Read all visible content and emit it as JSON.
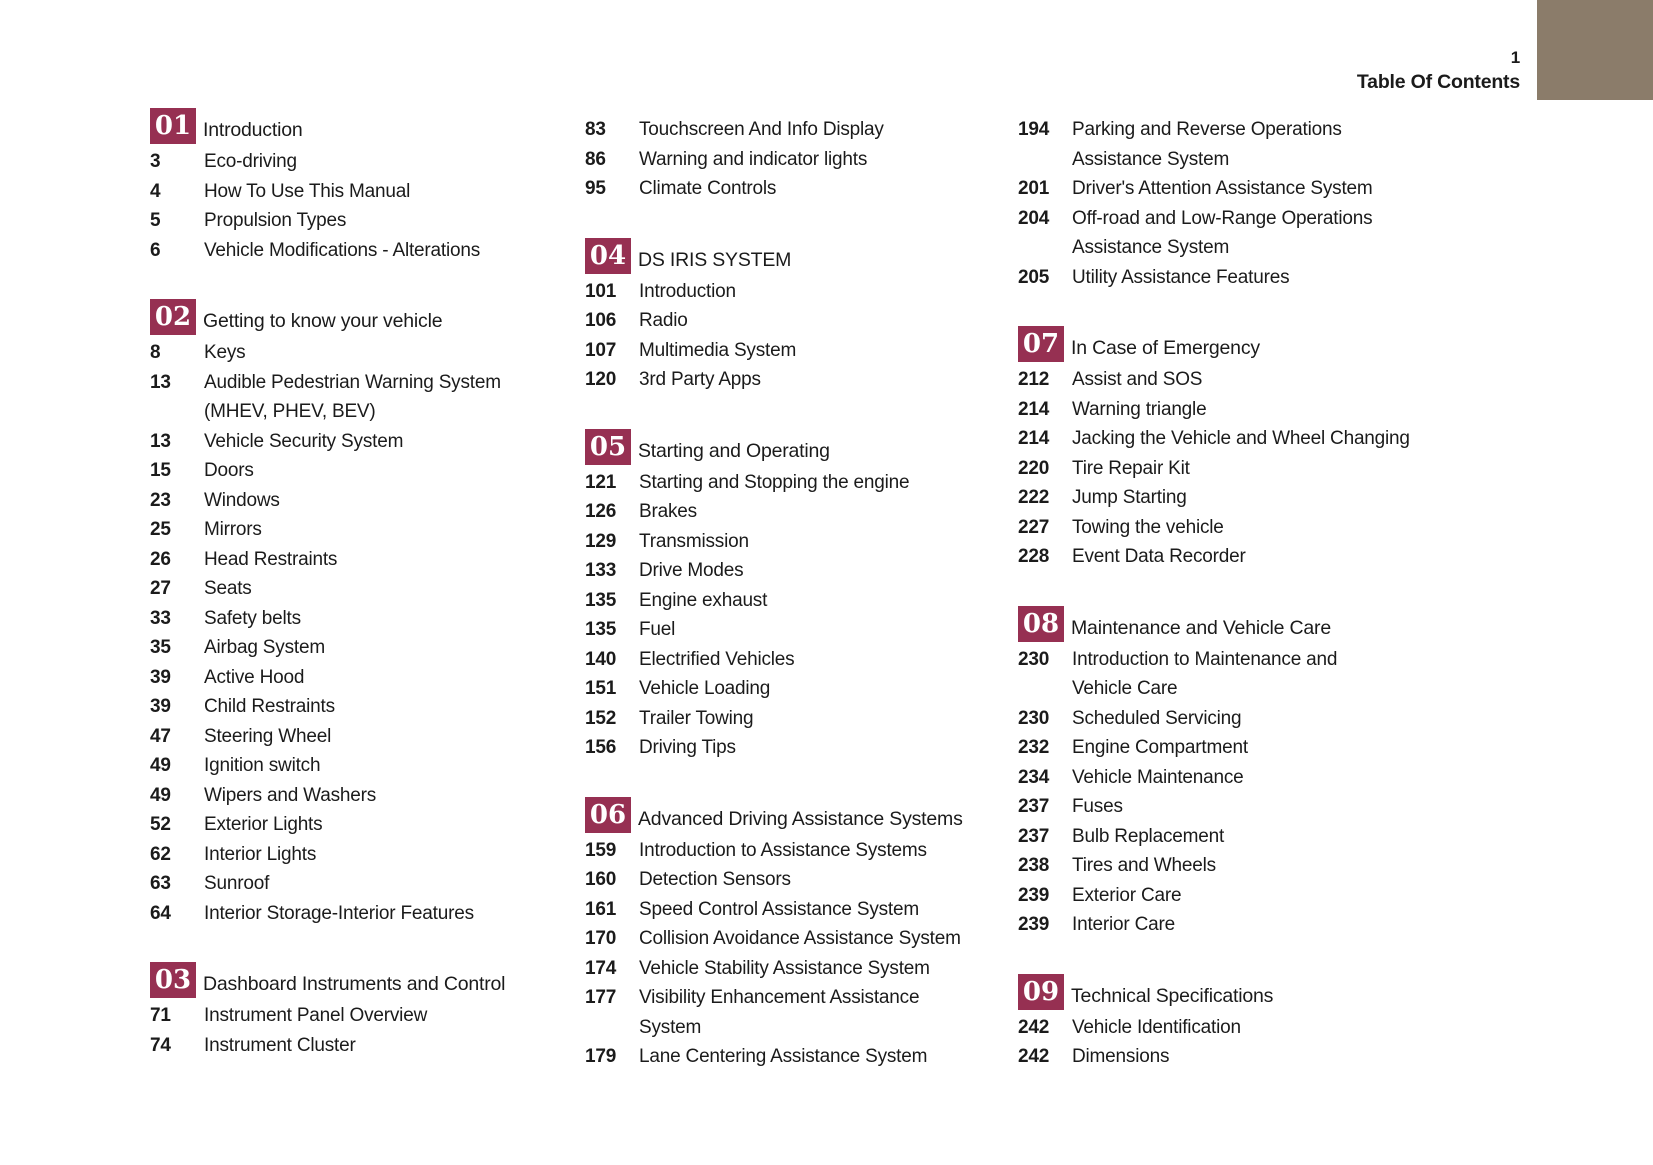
{
  "page": {
    "number": "1",
    "title": "Table Of Contents"
  },
  "colors": {
    "badge_bg": "#963052",
    "corner_tab": "#8b7c6a",
    "text": "#1b1b1b"
  },
  "columns": [
    {
      "blocks": [
        {
          "type": "section",
          "num": "01",
          "title": "Introduction"
        },
        {
          "type": "entry",
          "page": "3",
          "lines": [
            "Eco-driving"
          ]
        },
        {
          "type": "entry",
          "page": "4",
          "lines": [
            "How To Use This Manual"
          ]
        },
        {
          "type": "entry",
          "page": "5",
          "lines": [
            "Propulsion Types"
          ]
        },
        {
          "type": "entry",
          "page": "6",
          "lines": [
            "Vehicle Modifications - Alterations"
          ]
        },
        {
          "type": "section",
          "num": "02",
          "title": "Getting to know your vehicle"
        },
        {
          "type": "entry",
          "page": "8",
          "lines": [
            "Keys"
          ]
        },
        {
          "type": "entry",
          "page": "13",
          "lines": [
            "Audible Pedestrian Warning System",
            "(MHEV, PHEV, BEV)"
          ]
        },
        {
          "type": "entry",
          "page": "13",
          "lines": [
            "Vehicle Security System"
          ]
        },
        {
          "type": "entry",
          "page": "15",
          "lines": [
            "Doors"
          ]
        },
        {
          "type": "entry",
          "page": "23",
          "lines": [
            "Windows"
          ]
        },
        {
          "type": "entry",
          "page": "25",
          "lines": [
            "Mirrors"
          ]
        },
        {
          "type": "entry",
          "page": "26",
          "lines": [
            "Head Restraints"
          ]
        },
        {
          "type": "entry",
          "page": "27",
          "lines": [
            "Seats"
          ]
        },
        {
          "type": "entry",
          "page": "33",
          "lines": [
            "Safety belts"
          ]
        },
        {
          "type": "entry",
          "page": "35",
          "lines": [
            "Airbag System"
          ]
        },
        {
          "type": "entry",
          "page": "39",
          "lines": [
            "Active Hood"
          ]
        },
        {
          "type": "entry",
          "page": "39",
          "lines": [
            "Child Restraints"
          ]
        },
        {
          "type": "entry",
          "page": "47",
          "lines": [
            "Steering Wheel"
          ]
        },
        {
          "type": "entry",
          "page": "49",
          "lines": [
            "Ignition switch"
          ]
        },
        {
          "type": "entry",
          "page": "49",
          "lines": [
            "Wipers and Washers"
          ]
        },
        {
          "type": "entry",
          "page": "52",
          "lines": [
            "Exterior Lights"
          ]
        },
        {
          "type": "entry",
          "page": "62",
          "lines": [
            "Interior Lights"
          ]
        },
        {
          "type": "entry",
          "page": "63",
          "lines": [
            "Sunroof"
          ]
        },
        {
          "type": "entry",
          "page": "64",
          "lines": [
            "Interior Storage-Interior Features"
          ]
        },
        {
          "type": "section",
          "num": "03",
          "title": "Dashboard Instruments and Control"
        },
        {
          "type": "entry",
          "page": "71",
          "lines": [
            "Instrument Panel Overview"
          ]
        },
        {
          "type": "entry",
          "page": "74",
          "lines": [
            "Instrument Cluster"
          ]
        }
      ]
    },
    {
      "blocks": [
        {
          "type": "entry",
          "page": "83",
          "lines": [
            "Touchscreen And Info Display"
          ]
        },
        {
          "type": "entry",
          "page": "86",
          "lines": [
            "Warning and indicator lights"
          ]
        },
        {
          "type": "entry",
          "page": "95",
          "lines": [
            "Climate Controls"
          ]
        },
        {
          "type": "section",
          "num": "04",
          "title": "DS IRIS SYSTEM"
        },
        {
          "type": "entry",
          "page": "101",
          "lines": [
            "Introduction"
          ]
        },
        {
          "type": "entry",
          "page": "106",
          "lines": [
            "Radio"
          ]
        },
        {
          "type": "entry",
          "page": "107",
          "lines": [
            "Multimedia System"
          ]
        },
        {
          "type": "entry",
          "page": "120",
          "lines": [
            "3rd Party Apps"
          ]
        },
        {
          "type": "section",
          "num": "05",
          "title": "Starting and Operating"
        },
        {
          "type": "entry",
          "page": "121",
          "lines": [
            "Starting and Stopping the engine"
          ]
        },
        {
          "type": "entry",
          "page": "126",
          "lines": [
            "Brakes"
          ]
        },
        {
          "type": "entry",
          "page": "129",
          "lines": [
            "Transmission"
          ]
        },
        {
          "type": "entry",
          "page": "133",
          "lines": [
            "Drive Modes"
          ]
        },
        {
          "type": "entry",
          "page": "135",
          "lines": [
            "Engine exhaust"
          ]
        },
        {
          "type": "entry",
          "page": "135",
          "lines": [
            "Fuel"
          ]
        },
        {
          "type": "entry",
          "page": "140",
          "lines": [
            "Electrified Vehicles"
          ]
        },
        {
          "type": "entry",
          "page": "151",
          "lines": [
            "Vehicle Loading"
          ]
        },
        {
          "type": "entry",
          "page": "152",
          "lines": [
            "Trailer Towing"
          ]
        },
        {
          "type": "entry",
          "page": "156",
          "lines": [
            "Driving Tips"
          ]
        },
        {
          "type": "section",
          "num": "06",
          "title": "Advanced Driving Assistance Systems"
        },
        {
          "type": "entry",
          "page": "159",
          "lines": [
            "Introduction to Assistance Systems"
          ]
        },
        {
          "type": "entry",
          "page": "160",
          "lines": [
            "Detection Sensors"
          ]
        },
        {
          "type": "entry",
          "page": "161",
          "lines": [
            "Speed Control Assistance System"
          ]
        },
        {
          "type": "entry",
          "page": "170",
          "lines": [
            "Collision Avoidance Assistance System"
          ]
        },
        {
          "type": "entry",
          "page": "174",
          "lines": [
            "Vehicle Stability Assistance System"
          ]
        },
        {
          "type": "entry",
          "page": "177",
          "lines": [
            "Visibility Enhancement Assistance",
            "System"
          ]
        },
        {
          "type": "entry",
          "page": "179",
          "lines": [
            "Lane Centering Assistance System"
          ]
        }
      ]
    },
    {
      "blocks": [
        {
          "type": "entry",
          "page": "194",
          "lines": [
            "Parking and Reverse Operations",
            "Assistance System"
          ]
        },
        {
          "type": "entry",
          "page": "201",
          "lines": [
            "Driver's Attention Assistance System"
          ]
        },
        {
          "type": "entry",
          "page": "204",
          "lines": [
            "Off-road and Low-Range Operations",
            "Assistance System"
          ]
        },
        {
          "type": "entry",
          "page": "205",
          "lines": [
            "Utility Assistance Features"
          ]
        },
        {
          "type": "section",
          "num": "07",
          "title": "In Case of Emergency"
        },
        {
          "type": "entry",
          "page": "212",
          "lines": [
            "Assist and SOS"
          ]
        },
        {
          "type": "entry",
          "page": "214",
          "lines": [
            "Warning triangle"
          ]
        },
        {
          "type": "entry",
          "page": "214",
          "lines": [
            "Jacking the Vehicle and Wheel Changing"
          ]
        },
        {
          "type": "entry",
          "page": "220",
          "lines": [
            "Tire Repair Kit"
          ]
        },
        {
          "type": "entry",
          "page": "222",
          "lines": [
            "Jump Starting"
          ]
        },
        {
          "type": "entry",
          "page": "227",
          "lines": [
            "Towing the vehicle"
          ]
        },
        {
          "type": "entry",
          "page": "228",
          "lines": [
            "Event Data Recorder"
          ]
        },
        {
          "type": "section",
          "num": "08",
          "title": "Maintenance and Vehicle Care"
        },
        {
          "type": "entry",
          "page": "230",
          "lines": [
            "Introduction to Maintenance and",
            "Vehicle Care"
          ]
        },
        {
          "type": "entry",
          "page": "230",
          "lines": [
            "Scheduled Servicing"
          ]
        },
        {
          "type": "entry",
          "page": "232",
          "lines": [
            "Engine Compartment"
          ]
        },
        {
          "type": "entry",
          "page": "234",
          "lines": [
            "Vehicle Maintenance"
          ]
        },
        {
          "type": "entry",
          "page": "237",
          "lines": [
            "Fuses"
          ]
        },
        {
          "type": "entry",
          "page": "237",
          "lines": [
            "Bulb Replacement"
          ]
        },
        {
          "type": "entry",
          "page": "238",
          "lines": [
            "Tires and Wheels"
          ]
        },
        {
          "type": "entry",
          "page": "239",
          "lines": [
            "Exterior Care"
          ]
        },
        {
          "type": "entry",
          "page": "239",
          "lines": [
            "Interior Care"
          ]
        },
        {
          "type": "section",
          "num": "09",
          "title": "Technical Specifications"
        },
        {
          "type": "entry",
          "page": "242",
          "lines": [
            "Vehicle Identification"
          ]
        },
        {
          "type": "entry",
          "page": "242",
          "lines": [
            "Dimensions"
          ]
        }
      ]
    }
  ]
}
